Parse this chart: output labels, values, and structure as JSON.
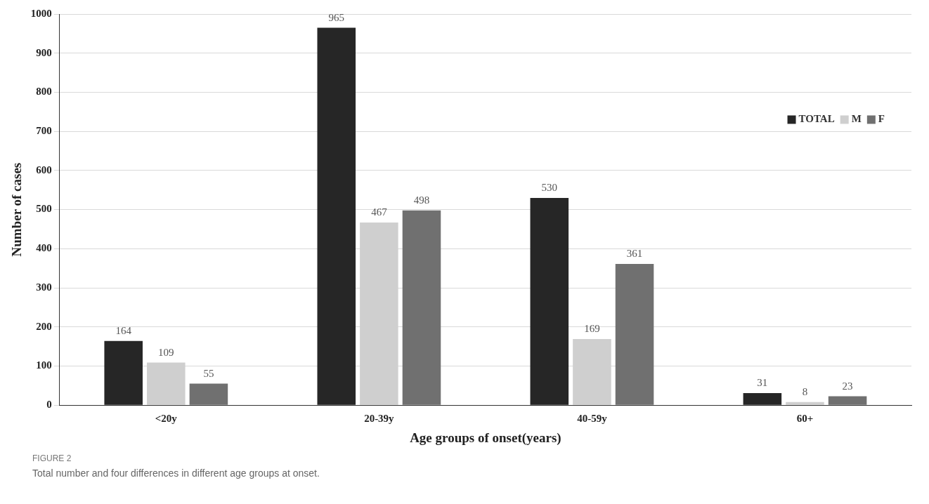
{
  "chart_data": {
    "type": "bar",
    "xlabel": "Age groups of onset(years)",
    "ylabel": "Number of cases",
    "categories": [
      "<20y",
      "20-39y",
      "40-59y",
      "60+"
    ],
    "series": [
      {
        "name": "TOTAL",
        "color": "#262626",
        "values": [
          164,
          965,
          530,
          31
        ]
      },
      {
        "name": "M",
        "color": "#cfcfcf",
        "values": [
          109,
          467,
          169,
          8
        ]
      },
      {
        "name": "F",
        "color": "#707070",
        "values": [
          55,
          498,
          361,
          23
        ]
      }
    ],
    "ylim": [
      0,
      1000
    ],
    "yticks": [
      0,
      100,
      200,
      300,
      400,
      500,
      600,
      700,
      800,
      900,
      1000
    ],
    "grid": "y",
    "legend": "right",
    "data_labels": true,
    "annotations": [
      "FIGURE 2",
      "Total number and four differences in different age groups at onset."
    ]
  }
}
